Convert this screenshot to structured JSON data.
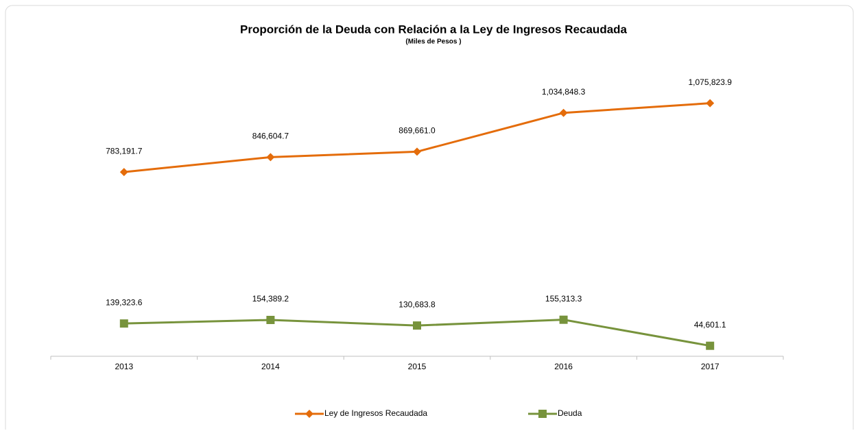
{
  "chart_data": {
    "type": "line",
    "title": "Proporción de la Deuda con Relación a la Ley de  Ingresos Recaudada",
    "subtitle": "(Miles de Pesos )",
    "categories": [
      "2013",
      "2014",
      "2015",
      "2016",
      "2017"
    ],
    "ylim": [
      0,
      1200000
    ],
    "legend": "bottom",
    "series": [
      {
        "name": "Ley de Ingresos Recaudada",
        "color": "#e46c0a",
        "marker": "diamond",
        "values": [
          783191.7,
          846604.7,
          869661.0,
          1034848.3,
          1075823.9
        ],
        "value_labels": [
          "783,191.7",
          "846,604.7",
          "869,661.0",
          "1,034,848.3",
          "1,075,823.9"
        ]
      },
      {
        "name": "Deuda",
        "color": "#77933c",
        "marker": "square",
        "values": [
          139323.6,
          154389.2,
          130683.8,
          155313.3,
          44601.1
        ],
        "value_labels": [
          "139,323.6",
          "154,389.2",
          "130,683.8",
          "155,313.3",
          "44,601.1"
        ]
      }
    ]
  }
}
